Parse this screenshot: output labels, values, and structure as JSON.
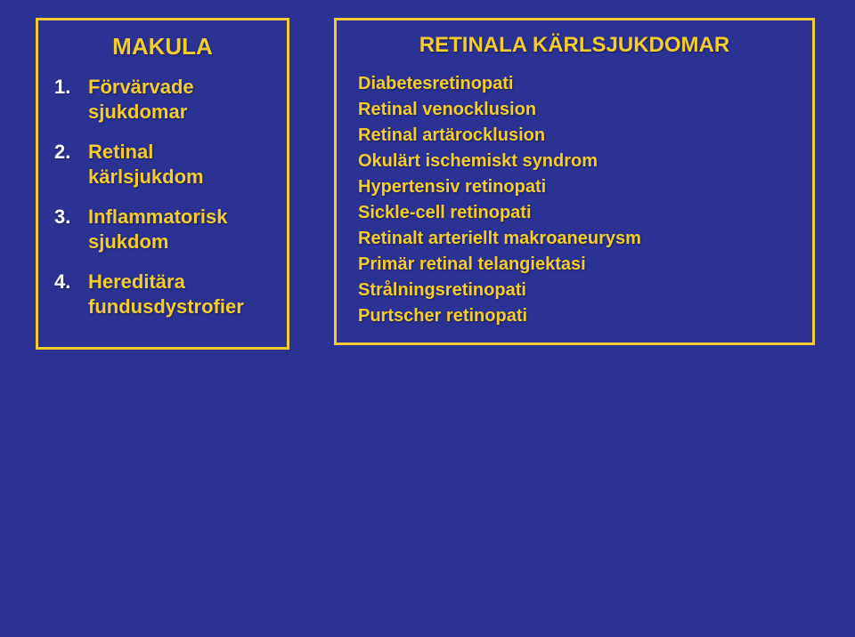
{
  "colors": {
    "background": "#2c3293",
    "border": "#f3cc2e",
    "text_yellow": "#f3cc2e",
    "text_white": "#ffffff"
  },
  "left": {
    "title": "MAKULA",
    "items": [
      {
        "num": "1.",
        "text": "Förvärvade sjukdomar"
      },
      {
        "num": "2.",
        "text": "Retinal kärlsjukdom"
      },
      {
        "num": "3.",
        "text": "Inflammatorisk sjukdom"
      },
      {
        "num": "4.",
        "text": "Hereditära fundusdystrofier"
      }
    ]
  },
  "right": {
    "title": "RETINALA KÄRLSJUKDOMAR",
    "items": [
      "Diabetesretinopati",
      "Retinal venocklusion",
      "Retinal artärocklusion",
      "Okulärt ischemiskt syndrom",
      "Hypertensiv retinopati",
      "Sickle-cell retinopati",
      "Retinalt arteriellt makroaneurysm",
      "Primär retinal telangiektasi",
      "Strålningsretinopati",
      "Purtscher retinopati"
    ]
  }
}
